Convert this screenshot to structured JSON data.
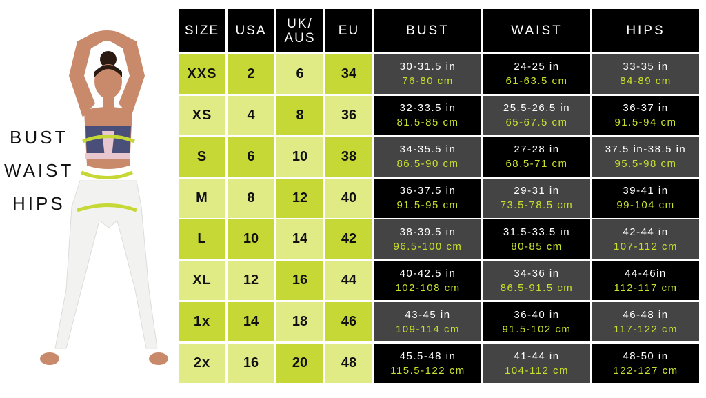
{
  "body_labels": {
    "bust": "BUST",
    "waist": "WAIST",
    "hips": "HIPS"
  },
  "headers": {
    "size": "SIZE",
    "usa": "USA",
    "uk_aus_line1": "UK/",
    "uk_aus_line2": "AUS",
    "eu": "EU",
    "bust": "BUST",
    "waist": "WAIST",
    "hips": "HIPS"
  },
  "colors": {
    "dark_green": "#c6d835",
    "light_green": "#e0eb86",
    "cm_text": "#c9e02b",
    "gray_cell": "#444444",
    "black_cell": "#000000"
  },
  "rows": [
    {
      "size": "XXS",
      "usa": "2",
      "uk": "6",
      "eu": "34",
      "bust_in": "30-31.5 in",
      "bust_cm": "76-80 cm",
      "waist_in": "24-25 in",
      "waist_cm": "61-63.5 cm",
      "hips_in": "33-35 in",
      "hips_cm": "84-89 cm"
    },
    {
      "size": "XS",
      "usa": "4",
      "uk": "8",
      "eu": "36",
      "bust_in": "32-33.5 in",
      "bust_cm": "81.5-85 cm",
      "waist_in": "25.5-26.5 in",
      "waist_cm": "65-67.5 cm",
      "hips_in": "36-37 in",
      "hips_cm": "91.5-94 cm"
    },
    {
      "size": "S",
      "usa": "6",
      "uk": "10",
      "eu": "38",
      "bust_in": "34-35.5 in",
      "bust_cm": "86.5-90 cm",
      "waist_in": "27-28 in",
      "waist_cm": "68.5-71 cm",
      "hips_in": "37.5 in-38.5 in",
      "hips_cm": "95.5-98 cm"
    },
    {
      "size": "M",
      "usa": "8",
      "uk": "12",
      "eu": "40",
      "bust_in": "36-37.5 in",
      "bust_cm": "91.5-95 cm",
      "waist_in": "29-31 in",
      "waist_cm": "73.5-78.5 cm",
      "hips_in": "39-41 in",
      "hips_cm": "99-104 cm"
    },
    {
      "size": "L",
      "usa": "10",
      "uk": "14",
      "eu": "42",
      "bust_in": "38-39.5 in",
      "bust_cm": "96.5-100 cm",
      "waist_in": "31.5-33.5 in",
      "waist_cm": "80-85 cm",
      "hips_in": "42-44 in",
      "hips_cm": "107-112 cm"
    },
    {
      "size": "XL",
      "usa": "12",
      "uk": "16",
      "eu": "44",
      "bust_in": "40-42.5 in",
      "bust_cm": "102-108 cm",
      "waist_in": "34-36 in",
      "waist_cm": "86.5-91.5 cm",
      "hips_in": "44-46in",
      "hips_cm": "112-117 cm"
    },
    {
      "size": "1x",
      "usa": "14",
      "uk": "18",
      "eu": "46",
      "bust_in": "43-45 in",
      "bust_cm": "109-114 cm",
      "waist_in": "36-40 in",
      "waist_cm": "91.5-102 cm",
      "hips_in": "46-48 in",
      "hips_cm": "117-122 cm"
    },
    {
      "size": "2x",
      "usa": "16",
      "uk": "20",
      "eu": "48",
      "bust_in": "45.5-48 in",
      "bust_cm": "115.5-122 cm",
      "waist_in": "41-44 in",
      "waist_cm": "104-112 cm",
      "hips_in": "48-50 in",
      "hips_cm": "122-127 cm"
    }
  ]
}
